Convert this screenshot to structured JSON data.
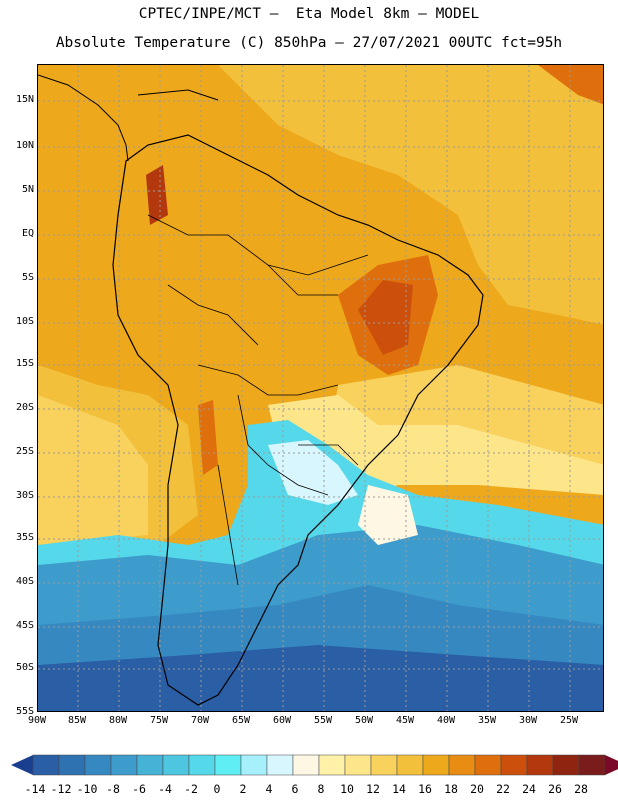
{
  "title_line1": "CPTEC/INPE/MCT –  Eta Model 8km – MODEL",
  "title_line2": "Absolute Temperature (C) 850hPa – 27/07/2021 00UTC fct=95h",
  "lat_labels": [
    "15N",
    "10N",
    "5N",
    "EQ",
    "5S",
    "10S",
    "15S",
    "20S",
    "25S",
    "30S",
    "35S",
    "40S",
    "45S",
    "50S",
    "55S"
  ],
  "lon_labels": [
    "90W",
    "85W",
    "80W",
    "75W",
    "70W",
    "65W",
    "60W",
    "55W",
    "50W",
    "45W",
    "40W",
    "35W",
    "30W",
    "25W"
  ],
  "colorbar": {
    "ticks": [
      "-14",
      "-12",
      "-10",
      "-8",
      "-6",
      "-4",
      "-2",
      "0",
      "2",
      "4",
      "6",
      "8",
      "10",
      "12",
      "14",
      "16",
      "18",
      "20",
      "22",
      "24",
      "26",
      "28"
    ],
    "colors": [
      "#1b3f8f",
      "#2a5ea5",
      "#2f72b2",
      "#3688c0",
      "#3d9ccb",
      "#45b2d6",
      "#4fc6e0",
      "#55d8ea",
      "#5eeef4",
      "#a6f0fb",
      "#d8f6fd",
      "#fdf7e3",
      "#fff2a8",
      "#fde58a",
      "#f8d25c",
      "#f2c03a",
      "#eea81c",
      "#e98c14",
      "#de6f0c",
      "#cc500c",
      "#b4380e",
      "#8f2410",
      "#7a1c1c",
      "#7a0a28"
    ]
  },
  "map": {
    "map_type": "temperature contour map",
    "region": "South America",
    "variable": "Absolute Temperature",
    "units": "C",
    "level": "850hPa",
    "date": "27/07/2021",
    "run": "00UTC",
    "forecast_hour": "95h",
    "color_key": {
      "warm_zone": "#eea81c",
      "hot_core": "#cc500c",
      "mid_zone": "#f2c03a",
      "cool_zone": "#fde58a",
      "cold_front": "#55d8ea",
      "cold_zone": "#3d9ccb",
      "coldest": "#2a5ea5",
      "ocean_deep": "#f8d25c",
      "coastline_color": "#000000"
    }
  }
}
